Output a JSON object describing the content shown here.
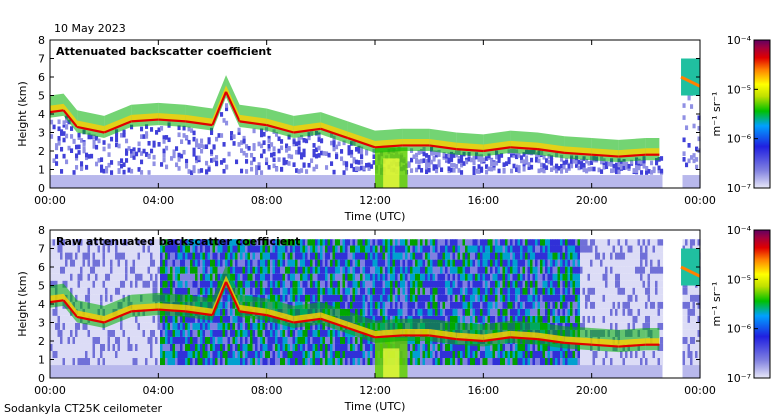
{
  "date": "10 May 2023",
  "instrument": "Sodankyla CT25K ceilometer",
  "chart_data": [
    {
      "type": "heatmap",
      "title": "Attenuated backscatter coefficient",
      "xlabel": "Time (UTC)",
      "ylabel": "Height (km)",
      "xticks": [
        "00:00",
        "04:00",
        "08:00",
        "12:00",
        "16:00",
        "20:00",
        "00:00"
      ],
      "xlim_hours": [
        0,
        24
      ],
      "yticks": [
        0,
        1,
        2,
        3,
        4,
        5,
        6,
        7,
        8
      ],
      "ylim": [
        0,
        8
      ],
      "colorbar": {
        "label": "m⁻¹ sr⁻¹",
        "scale": "log",
        "ticks": [
          "10⁻⁷",
          "10⁻⁶",
          "10⁻⁵",
          "10⁻⁴"
        ],
        "range": [
          1e-07,
          0.0001
        ]
      },
      "cloud_base_km": [
        {
          "t": 0.0,
          "h": 4.1
        },
        {
          "t": 0.5,
          "h": 4.2
        },
        {
          "t": 1.0,
          "h": 3.3
        },
        {
          "t": 2.0,
          "h": 3.0
        },
        {
          "t": 3.0,
          "h": 3.6
        },
        {
          "t": 4.0,
          "h": 3.7
        },
        {
          "t": 5.0,
          "h": 3.6
        },
        {
          "t": 6.0,
          "h": 3.4
        },
        {
          "t": 6.5,
          "h": 5.2
        },
        {
          "t": 7.0,
          "h": 3.6
        },
        {
          "t": 8.0,
          "h": 3.4
        },
        {
          "t": 9.0,
          "h": 3.0
        },
        {
          "t": 10.0,
          "h": 3.2
        },
        {
          "t": 11.0,
          "h": 2.7
        },
        {
          "t": 12.0,
          "h": 2.2
        },
        {
          "t": 13.0,
          "h": 2.3
        },
        {
          "t": 14.0,
          "h": 2.3
        },
        {
          "t": 15.0,
          "h": 2.1
        },
        {
          "t": 16.0,
          "h": 2.0
        },
        {
          "t": 17.0,
          "h": 2.2
        },
        {
          "t": 18.0,
          "h": 2.1
        },
        {
          "t": 19.0,
          "h": 1.9
        },
        {
          "t": 20.0,
          "h": 1.8
        },
        {
          "t": 21.0,
          "h": 1.7
        },
        {
          "t": 22.0,
          "h": 1.8
        },
        {
          "t": 22.5,
          "h": 1.8
        },
        {
          "t": 23.5,
          "h": 6.0
        }
      ]
    },
    {
      "type": "heatmap",
      "title": "Raw attenuated backscatter coefficient",
      "xlabel": "Time (UTC)",
      "ylabel": "Height (km)",
      "xticks": [
        "00:00",
        "04:00",
        "08:00",
        "12:00",
        "16:00",
        "20:00",
        "00:00"
      ],
      "xlim_hours": [
        0,
        24
      ],
      "yticks": [
        0,
        1,
        2,
        3,
        4,
        5,
        6,
        7,
        8
      ],
      "ylim": [
        0,
        8
      ],
      "colorbar": {
        "label": "m⁻¹ sr⁻¹",
        "scale": "log",
        "ticks": [
          "10⁻⁷",
          "10⁻⁶",
          "10⁻⁵",
          "10⁻⁴"
        ],
        "range": [
          1e-07,
          0.0001
        ]
      },
      "cloud_base_km": [
        {
          "t": 0.0,
          "h": 4.1
        },
        {
          "t": 0.5,
          "h": 4.2
        },
        {
          "t": 1.0,
          "h": 3.3
        },
        {
          "t": 2.0,
          "h": 3.0
        },
        {
          "t": 3.0,
          "h": 3.6
        },
        {
          "t": 4.0,
          "h": 3.7
        },
        {
          "t": 5.0,
          "h": 3.6
        },
        {
          "t": 6.0,
          "h": 3.4
        },
        {
          "t": 6.5,
          "h": 5.2
        },
        {
          "t": 7.0,
          "h": 3.6
        },
        {
          "t": 8.0,
          "h": 3.4
        },
        {
          "t": 9.0,
          "h": 3.0
        },
        {
          "t": 10.0,
          "h": 3.2
        },
        {
          "t": 11.0,
          "h": 2.7
        },
        {
          "t": 12.0,
          "h": 2.2
        },
        {
          "t": 13.0,
          "h": 2.3
        },
        {
          "t": 14.0,
          "h": 2.3
        },
        {
          "t": 15.0,
          "h": 2.1
        },
        {
          "t": 16.0,
          "h": 2.0
        },
        {
          "t": 17.0,
          "h": 2.2
        },
        {
          "t": 18.0,
          "h": 2.1
        },
        {
          "t": 19.0,
          "h": 1.9
        },
        {
          "t": 20.0,
          "h": 1.8
        },
        {
          "t": 21.0,
          "h": 1.7
        },
        {
          "t": 22.0,
          "h": 1.8
        },
        {
          "t": 22.5,
          "h": 1.8
        },
        {
          "t": 23.5,
          "h": 6.0
        }
      ]
    }
  ]
}
